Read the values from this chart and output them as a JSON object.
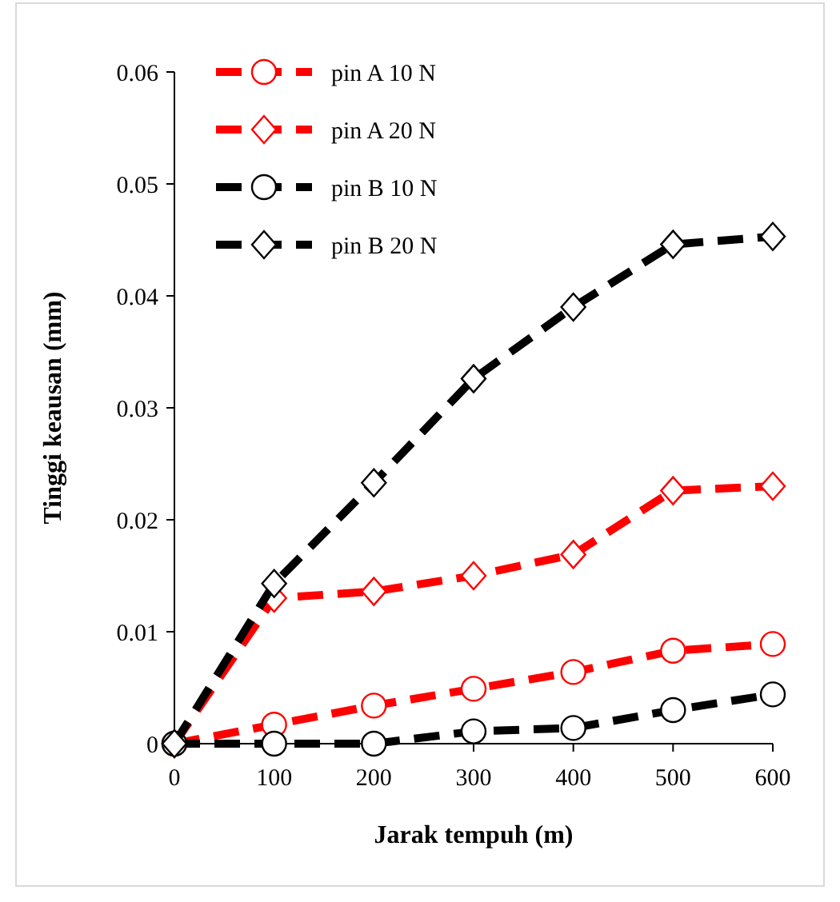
{
  "chart_data": {
    "type": "line",
    "xlabel": "Jarak tempuh (m)",
    "ylabel": "Tinggi keausan (mm)",
    "x": [
      0,
      100,
      200,
      300,
      400,
      500,
      600
    ],
    "xlim": [
      0,
      600
    ],
    "xticks": [
      0,
      100,
      200,
      300,
      400,
      500,
      600
    ],
    "ylim": [
      0,
      0.06
    ],
    "yticks": [
      0,
      0.01,
      0.02,
      0.03,
      0.04,
      0.05,
      0.06
    ],
    "grid": false,
    "legend": "top left",
    "line_style": "dashed",
    "series": [
      {
        "name": "pin A 10 N",
        "color": "#ff0000",
        "marker": "circle",
        "values": [
          0,
          0.0017,
          0.0034,
          0.0049,
          0.0064,
          0.0083,
          0.0089
        ]
      },
      {
        "name": "pin A 20 N",
        "color": "#ff0000",
        "marker": "diamond",
        "values": [
          0,
          0.013,
          0.0136,
          0.015,
          0.0169,
          0.0226,
          0.023
        ]
      },
      {
        "name": "pin B 10 N",
        "color": "#000000",
        "marker": "circle",
        "values": [
          0,
          0,
          0,
          0.0011,
          0.0014,
          0.003,
          0.0044
        ]
      },
      {
        "name": "pin B 20 N",
        "color": "#000000",
        "marker": "diamond",
        "values": [
          0,
          0.0143,
          0.0233,
          0.0326,
          0.039,
          0.0446,
          0.0453
        ]
      }
    ]
  }
}
